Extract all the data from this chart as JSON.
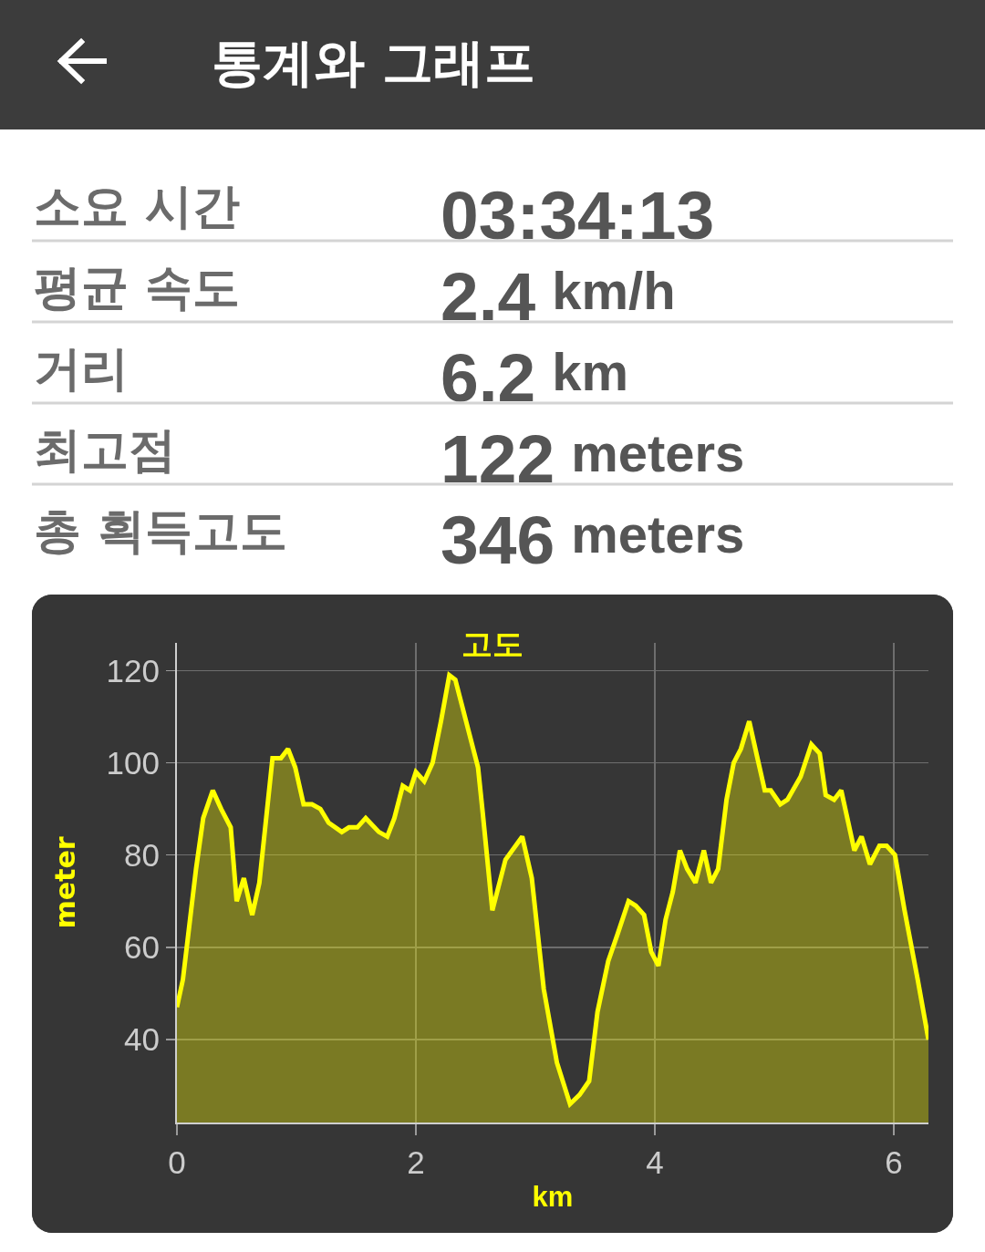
{
  "chart_data": [
    {
      "type": "other",
      "title": "통계와 그래프",
      "annotations": [
        "소요 시간",
        "03:34:13",
        "평균 속도",
        "2.4 km/h",
        "거리",
        "6.2 km",
        "최고점",
        "122 meters",
        "총 획득고도",
        "346 meters"
      ]
    },
    {
      "type": "area",
      "title": "고도",
      "xlabel": "km",
      "ylabel": "meter",
      "color": "#ffff00",
      "x": [
        0,
        0.05,
        0.16,
        0.22,
        0.3,
        0.37,
        0.45,
        0.5,
        0.56,
        0.63,
        0.69,
        0.8,
        0.87,
        0.93,
        0.99,
        1.06,
        1.13,
        1.2,
        1.27,
        1.38,
        1.44,
        1.51,
        1.58,
        1.69,
        1.76,
        1.82,
        1.89,
        1.95,
        2.0,
        2.07,
        2.14,
        2.21,
        2.28,
        2.33,
        2.44,
        2.52,
        2.56,
        2.64,
        2.75,
        2.89,
        2.97,
        3.07,
        3.18,
        3.29,
        3.37,
        3.45,
        3.52,
        3.61,
        3.69,
        3.78,
        3.84,
        3.91,
        3.97,
        4.03,
        4.09,
        4.15,
        4.21,
        4.27,
        4.34,
        4.41,
        4.47,
        4.53,
        4.6,
        4.66,
        4.72,
        4.79,
        4.85,
        4.92,
        4.97,
        5.05,
        5.11,
        5.22,
        5.31,
        5.38,
        5.43,
        5.5,
        5.56,
        5.67,
        5.73,
        5.8,
        5.88,
        5.94,
        6.01,
        6.09,
        6.2,
        6.29
      ],
      "values": [
        47,
        53,
        77,
        88,
        94,
        90,
        86,
        70,
        75,
        67,
        74,
        101,
        101,
        103,
        99,
        91,
        91,
        90,
        87,
        85,
        86,
        86,
        88,
        85,
        84,
        88,
        95,
        94,
        98,
        96,
        100,
        109,
        119,
        118,
        107,
        99,
        89,
        68,
        79,
        84,
        75,
        51,
        35,
        26,
        28,
        31,
        46,
        57,
        63,
        70,
        69,
        67,
        59,
        56,
        66,
        72,
        81,
        77,
        74,
        81,
        74,
        77,
        92,
        100,
        103,
        109,
        102,
        94,
        94,
        91,
        92,
        97,
        104,
        102,
        93,
        92,
        94,
        81,
        84,
        78,
        82,
        82,
        80,
        68,
        53,
        40
      ],
      "xlim": [
        0,
        6.29
      ],
      "ylim": [
        22,
        126
      ],
      "xticks": [
        0,
        2,
        4,
        6
      ],
      "yticks": [
        40,
        60,
        80,
        100,
        120
      ],
      "grid": true
    }
  ]
}
